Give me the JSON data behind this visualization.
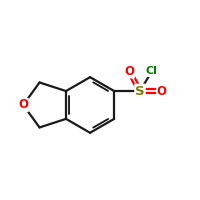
{
  "bg_color": "#ffffff",
  "bond_color": "#1a1a1a",
  "oxygen_color": "#ff0000",
  "sulfur_color": "#808000",
  "chlorine_color": "#008000",
  "line_width": 1.6,
  "figsize": [
    2.0,
    2.0
  ],
  "dpi": 100,
  "xlim": [
    -4.5,
    5.5
  ],
  "ylim": [
    -3.5,
    4.0
  ]
}
